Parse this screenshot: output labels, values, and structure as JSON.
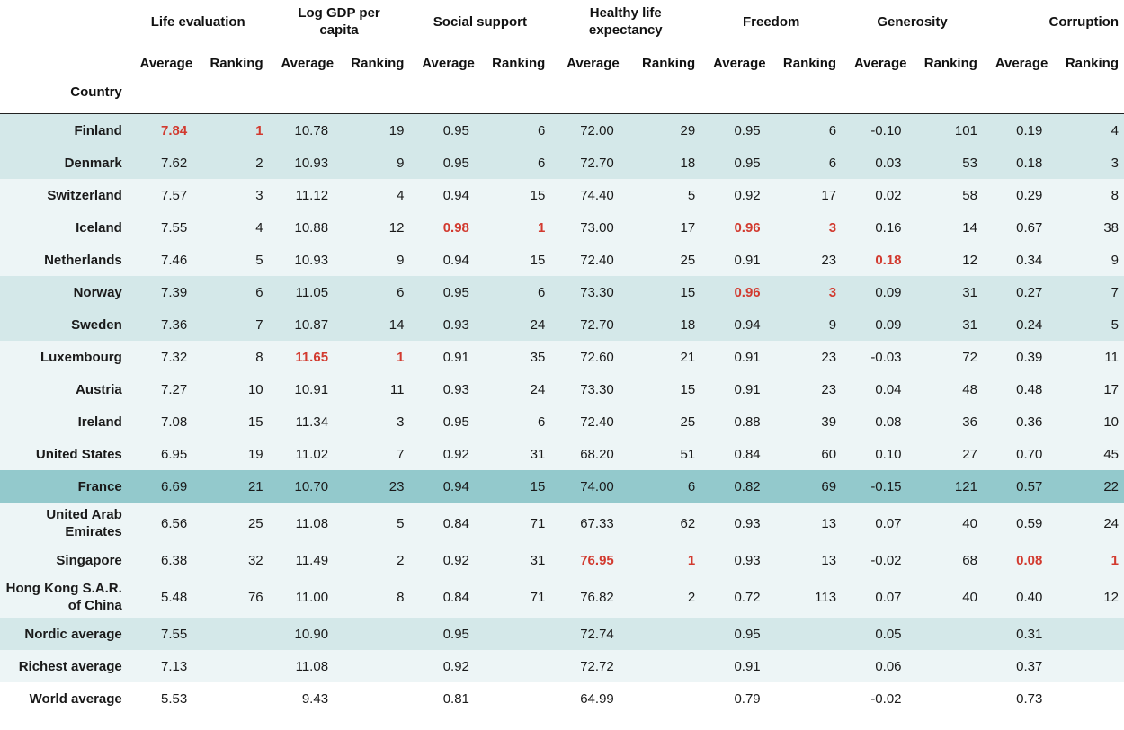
{
  "headers": {
    "groups": [
      "Life evaluation",
      "Log GDP per capita",
      "Social support",
      "Healthy life expectancy",
      "Freedom",
      "Generosity",
      "Corruption"
    ],
    "average_label": "Average",
    "ranking_label": "Ranking",
    "country_label": "Country"
  },
  "rows": [
    {
      "country": "Finland",
      "cells": [
        "7.84",
        "1",
        "10.78",
        "19",
        "0.95",
        "6",
        "72.00",
        "29",
        "0.95",
        "6",
        "-0.10",
        "101",
        "0.19",
        "4"
      ],
      "highlight": [
        0,
        1
      ],
      "band": "nordic"
    },
    {
      "country": "Denmark",
      "cells": [
        "7.62",
        "2",
        "10.93",
        "9",
        "0.95",
        "6",
        "72.70",
        "18",
        "0.95",
        "6",
        "0.03",
        "53",
        "0.18",
        "3"
      ],
      "highlight": [],
      "band": "nordic"
    },
    {
      "country": "Switzerland",
      "cells": [
        "7.57",
        "3",
        "11.12",
        "4",
        "0.94",
        "15",
        "74.40",
        "5",
        "0.92",
        "17",
        "0.02",
        "58",
        "0.29",
        "8"
      ],
      "highlight": [],
      "band": "rich"
    },
    {
      "country": "Iceland",
      "cells": [
        "7.55",
        "4",
        "10.88",
        "12",
        "0.98",
        "1",
        "73.00",
        "17",
        "0.96",
        "3",
        "0.16",
        "14",
        "0.67",
        "38"
      ],
      "highlight": [
        4,
        5,
        8,
        9
      ],
      "band": "rich"
    },
    {
      "country": "Netherlands",
      "cells": [
        "7.46",
        "5",
        "10.93",
        "9",
        "0.94",
        "15",
        "72.40",
        "25",
        "0.91",
        "23",
        "0.18",
        "12",
        "0.34",
        "9"
      ],
      "highlight": [
        10
      ],
      "band": "rich"
    },
    {
      "country": "Norway",
      "cells": [
        "7.39",
        "6",
        "11.05",
        "6",
        "0.95",
        "6",
        "73.30",
        "15",
        "0.96",
        "3",
        "0.09",
        "31",
        "0.27",
        "7"
      ],
      "highlight": [
        8,
        9
      ],
      "band": "nordic"
    },
    {
      "country": "Sweden",
      "cells": [
        "7.36",
        "7",
        "10.87",
        "14",
        "0.93",
        "24",
        "72.70",
        "18",
        "0.94",
        "9",
        "0.09",
        "31",
        "0.24",
        "5"
      ],
      "highlight": [],
      "band": "nordic"
    },
    {
      "country": "Luxembourg",
      "cells": [
        "7.32",
        "8",
        "11.65",
        "1",
        "0.91",
        "35",
        "72.60",
        "21",
        "0.91",
        "23",
        "-0.03",
        "72",
        "0.39",
        "11"
      ],
      "highlight": [
        2,
        3
      ],
      "band": "rich"
    },
    {
      "country": "Austria",
      "cells": [
        "7.27",
        "10",
        "10.91",
        "11",
        "0.93",
        "24",
        "73.30",
        "15",
        "0.91",
        "23",
        "0.04",
        "48",
        "0.48",
        "17"
      ],
      "highlight": [],
      "band": "rich"
    },
    {
      "country": "Ireland",
      "cells": [
        "7.08",
        "15",
        "11.34",
        "3",
        "0.95",
        "6",
        "72.40",
        "25",
        "0.88",
        "39",
        "0.08",
        "36",
        "0.36",
        "10"
      ],
      "highlight": [],
      "band": "rich"
    },
    {
      "country": "United States",
      "cells": [
        "6.95",
        "19",
        "11.02",
        "7",
        "0.92",
        "31",
        "68.20",
        "51",
        "0.84",
        "60",
        "0.10",
        "27",
        "0.70",
        "45"
      ],
      "highlight": [],
      "band": "rich"
    },
    {
      "country": "France",
      "cells": [
        "6.69",
        "21",
        "10.70",
        "23",
        "0.94",
        "15",
        "74.00",
        "6",
        "0.82",
        "69",
        "-0.15",
        "121",
        "0.57",
        "22"
      ],
      "highlight": [],
      "band": "france"
    },
    {
      "country_line1": "United Arab",
      "country_line2": "Emirates",
      "cells": [
        "6.56",
        "25",
        "11.08",
        "5",
        "0.84",
        "71",
        "67.33",
        "62",
        "0.93",
        "13",
        "0.07",
        "40",
        "0.59",
        "24"
      ],
      "highlight": [],
      "band": "rich",
      "two_line": true
    },
    {
      "country": "Singapore",
      "cells": [
        "6.38",
        "32",
        "11.49",
        "2",
        "0.92",
        "31",
        "76.95",
        "1",
        "0.93",
        "13",
        "-0.02",
        "68",
        "0.08",
        "1"
      ],
      "highlight": [
        6,
        7,
        12,
        13
      ],
      "band": "rich"
    },
    {
      "country_line1": "Hong Kong S.A.R.",
      "country_line2": "of China",
      "cells": [
        "5.48",
        "76",
        "11.00",
        "8",
        "0.84",
        "71",
        "76.82",
        "2",
        "0.72",
        "113",
        "0.07",
        "40",
        "0.40",
        "12"
      ],
      "highlight": [],
      "band": "rich",
      "two_line": true
    },
    {
      "country": "Nordic average",
      "cells": [
        "7.55",
        "",
        "10.90",
        "",
        "0.95",
        "",
        "72.74",
        "",
        "0.95",
        "",
        "0.05",
        "",
        "0.31",
        ""
      ],
      "highlight": [],
      "band": "nordic"
    },
    {
      "country": "Richest average",
      "cells": [
        "7.13",
        "",
        "11.08",
        "",
        "0.92",
        "",
        "72.72",
        "",
        "0.91",
        "",
        "0.06",
        "",
        "0.37",
        ""
      ],
      "highlight": [],
      "band": "rich"
    },
    {
      "country": "World average",
      "cells": [
        "5.53",
        "",
        "9.43",
        "",
        "0.81",
        "",
        "64.99",
        "",
        "0.79",
        "",
        "-0.02",
        "",
        "0.73",
        ""
      ],
      "highlight": [],
      "band": "white"
    }
  ],
  "colors": {
    "nordic_band": "#d4e8e9",
    "rich_band": "#edf5f6",
    "france_band": "#93c9cc",
    "highlight_text": "#d23a2f"
  }
}
